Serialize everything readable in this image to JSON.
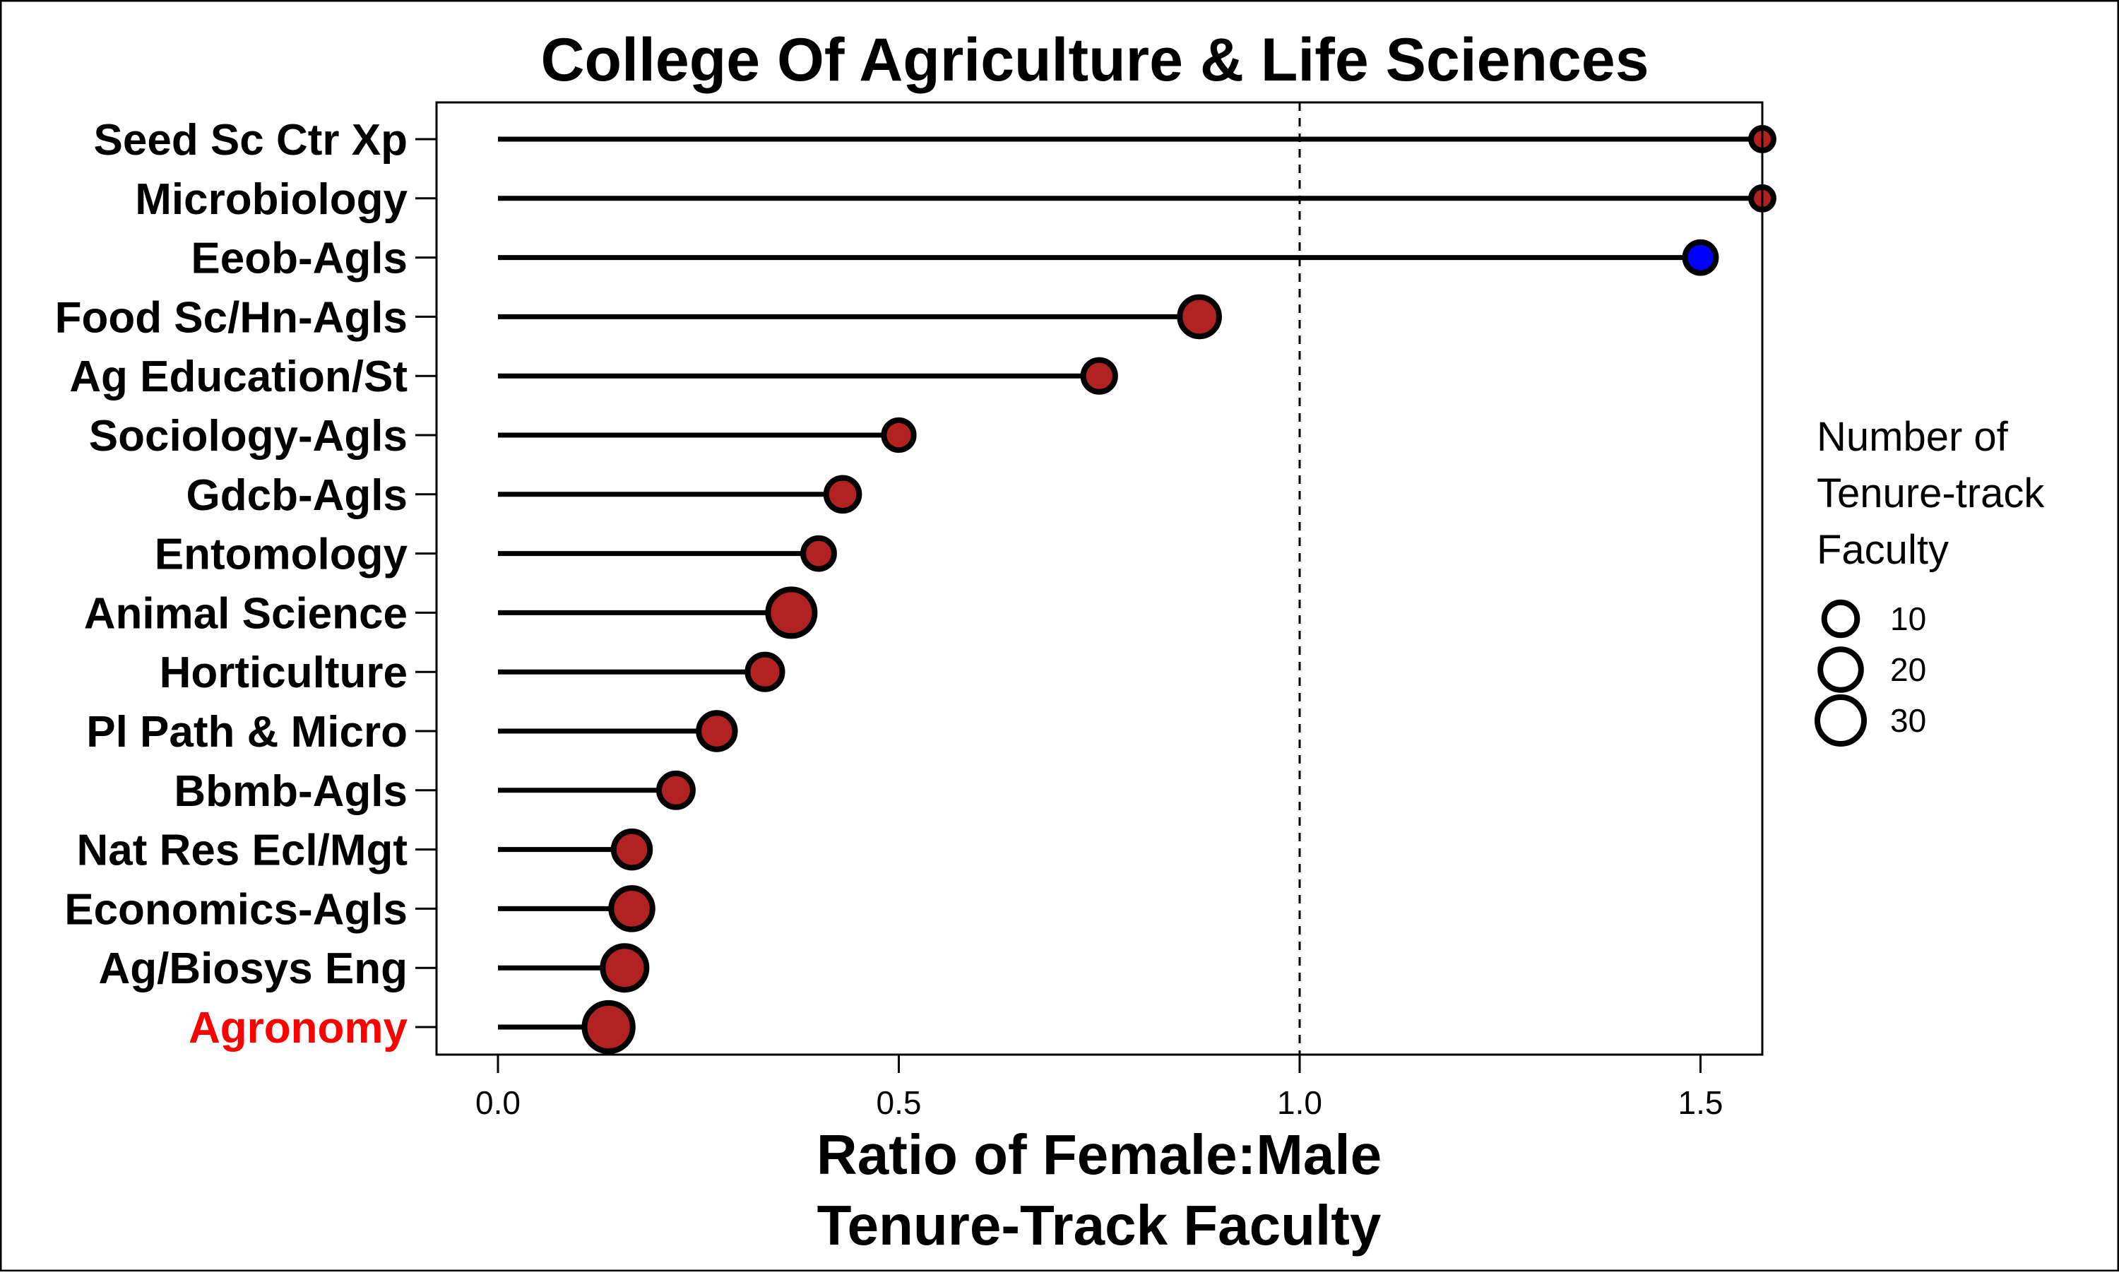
{
  "chart_data": {
    "type": "lollipop",
    "title": "College Of Agriculture & Life Sciences",
    "xlabel_line1": "Ratio of Female:Male",
    "xlabel_line2": "Tenure-Track Faculty",
    "ylabel": "",
    "xlim": [
      -0.07,
      1.57
    ],
    "x_ticks": [
      0.0,
      0.5,
      1.0,
      1.5
    ],
    "x_tick_labels": [
      "0.0",
      "0.5",
      "1.0",
      "1.5"
    ],
    "reference_line": 1.0,
    "grid": false,
    "legend": {
      "title_lines": [
        "Number of",
        "Tenure-track",
        "Faculty"
      ],
      "placement": "right",
      "entries": [
        {
          "label": "10",
          "value": 10
        },
        {
          "label": "20",
          "value": 20
        },
        {
          "label": "30",
          "value": 30
        }
      ]
    },
    "colors": {
      "point_fill": "#b22222",
      "highlight_point_fill": "#0000ff",
      "highlight_label": "#ff0000",
      "stem": "#000000",
      "reference": "#000000"
    },
    "departments": [
      {
        "name": "Seed Sc Ctr Xp",
        "ratio": 1.6,
        "faculty": 2,
        "point_color": "#b22222",
        "label_color": "#000000"
      },
      {
        "name": "Microbiology",
        "ratio": 1.6,
        "faculty": 2,
        "point_color": "#b22222",
        "label_color": "#000000"
      },
      {
        "name": "Eeob-Agls",
        "ratio": 1.5,
        "faculty": 8,
        "point_color": "#0000ff",
        "label_color": "#000000"
      },
      {
        "name": "Food Sc/Hn-Agls",
        "ratio": 0.875,
        "faculty": 18,
        "point_color": "#b22222",
        "label_color": "#000000"
      },
      {
        "name": "Ag Education/St",
        "ratio": 0.75,
        "faculty": 9,
        "point_color": "#b22222",
        "label_color": "#000000"
      },
      {
        "name": "Sociology-Agls",
        "ratio": 0.5,
        "faculty": 7,
        "point_color": "#b22222",
        "label_color": "#000000"
      },
      {
        "name": "Gdcb-Agls",
        "ratio": 0.43,
        "faculty": 10,
        "point_color": "#b22222",
        "label_color": "#000000"
      },
      {
        "name": "Entomology",
        "ratio": 0.4,
        "faculty": 8,
        "point_color": "#b22222",
        "label_color": "#000000"
      },
      {
        "name": "Animal Science",
        "ratio": 0.366,
        "faculty": 30,
        "point_color": "#b22222",
        "label_color": "#000000"
      },
      {
        "name": "Horticulture",
        "ratio": 0.333,
        "faculty": 12,
        "point_color": "#b22222",
        "label_color": "#000000"
      },
      {
        "name": "Pl Path & Micro",
        "ratio": 0.273,
        "faculty": 14,
        "point_color": "#b22222",
        "label_color": "#000000"
      },
      {
        "name": "Bbmb-Agls",
        "ratio": 0.222,
        "faculty": 11,
        "point_color": "#b22222",
        "label_color": "#000000"
      },
      {
        "name": "Nat Res Ecl/Mgt",
        "ratio": 0.167,
        "faculty": 14,
        "point_color": "#b22222",
        "label_color": "#000000"
      },
      {
        "name": "Economics-Agls",
        "ratio": 0.167,
        "faculty": 21,
        "point_color": "#b22222",
        "label_color": "#000000"
      },
      {
        "name": "Ag/Biosys Eng",
        "ratio": 0.158,
        "faculty": 25,
        "point_color": "#b22222",
        "label_color": "#000000"
      },
      {
        "name": "Agronomy",
        "ratio": 0.138,
        "faculty": 33,
        "point_color": "#b22222",
        "label_color": "#ff0000"
      }
    ]
  }
}
